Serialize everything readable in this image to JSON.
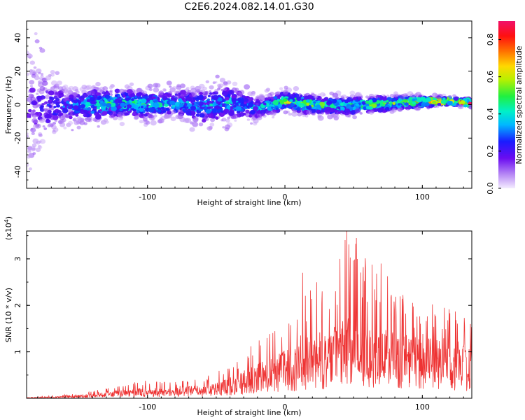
{
  "title": "C2E6.2024.082.14.01.G30",
  "colors": {
    "signal": "#ee3333",
    "spectro_low": "#dcc8f5",
    "spectro_mid": "#6a0cf0"
  },
  "top_panel": {
    "xlabel": "Height of straight line (km)",
    "ylabel": "Frequency (Hz)",
    "xlim": [
      -188,
      136
    ],
    "ylim": [
      -50,
      50
    ],
    "xticks": [
      -100,
      0,
      100
    ],
    "yticks": [
      -40,
      -20,
      0,
      20,
      40
    ],
    "colorbar": {
      "label": "Normalized spectral amplitude",
      "ticks": [
        "0.0",
        "0.2",
        "0.4",
        "0.6",
        "0.8"
      ],
      "range": [
        0,
        0.9
      ]
    }
  },
  "bottom_panel": {
    "xlabel": "Height of straight line (km)",
    "ylabel": "SNR (10 * v/v)",
    "multiplier": "(x10",
    "multiplier_exp": "4",
    "multiplier_close": ")",
    "xlim": [
      -188,
      136
    ],
    "ylim": [
      0,
      3.6
    ],
    "xticks": [
      -100,
      0,
      100
    ],
    "yticks": [
      1,
      2,
      3
    ]
  },
  "chart_data": [
    {
      "type": "heatmap",
      "description_units": "frequency (Hz) vs height (km), color = normalized spectral amplitude",
      "xlabel": "Height of straight line (km)",
      "ylabel": "Frequency (Hz)",
      "xlim": [
        -188,
        136
      ],
      "ylim": [
        -50,
        50
      ],
      "band_profile": {
        "x": [
          -188,
          -160,
          -140,
          -120,
          -100,
          -80,
          -60,
          -40,
          -20,
          0,
          20,
          40,
          60,
          80,
          100,
          120,
          136
        ],
        "center_hz": [
          0,
          -1,
          0,
          1,
          0,
          1,
          -1,
          1,
          -2,
          2,
          0,
          -1,
          0,
          1,
          2,
          2,
          1
        ],
        "halfwidth_hz": [
          48,
          12,
          12,
          11,
          10,
          10,
          14,
          13,
          8,
          7,
          7,
          7,
          6,
          5,
          4,
          3,
          3
        ],
        "peak_amplitude": [
          0.15,
          0.3,
          0.45,
          0.45,
          0.45,
          0.4,
          0.35,
          0.4,
          0.35,
          0.55,
          0.55,
          0.45,
          0.55,
          0.65,
          0.75,
          0.85,
          0.9
        ]
      }
    },
    {
      "type": "line",
      "xlabel": "Height of straight line (km)",
      "ylabel": "SNR (10 * v/v)",
      "xlim": [
        -188,
        136
      ],
      "ylim": [
        0,
        3.6
      ],
      "unit_multiplier": 10000,
      "envelope": {
        "x": [
          -188,
          -160,
          -140,
          -120,
          -100,
          -80,
          -60,
          -40,
          -30,
          -20,
          -10,
          0,
          10,
          20,
          30,
          40,
          45,
          50,
          60,
          70,
          80,
          90,
          100,
          110,
          120,
          130,
          136
        ],
        "max": [
          0.02,
          0.08,
          0.15,
          0.3,
          0.4,
          0.35,
          0.45,
          0.7,
          0.9,
          1.5,
          1.7,
          1.9,
          1.8,
          2.7,
          2.4,
          3.0,
          3.6,
          3.45,
          3.0,
          2.9,
          2.4,
          2.2,
          1.8,
          2.1,
          2.0,
          1.9,
          1.7
        ],
        "mean": [
          0.01,
          0.03,
          0.07,
          0.12,
          0.15,
          0.15,
          0.2,
          0.3,
          0.4,
          0.5,
          0.6,
          0.7,
          0.75,
          0.95,
          0.95,
          1.1,
          1.2,
          1.2,
          1.1,
          1.05,
          1.0,
          0.95,
          0.9,
          0.9,
          0.85,
          0.8,
          0.75
        ]
      },
      "peaks": [
        {
          "x": 45,
          "y": 3.6
        },
        {
          "x": 52,
          "y": 3.45
        },
        {
          "x": 40,
          "y": 3.0
        },
        {
          "x": 70,
          "y": 2.9
        },
        {
          "x": 13,
          "y": 2.7
        },
        {
          "x": 27,
          "y": 2.3
        },
        {
          "x": -27,
          "y": 0.9
        }
      ]
    }
  ]
}
